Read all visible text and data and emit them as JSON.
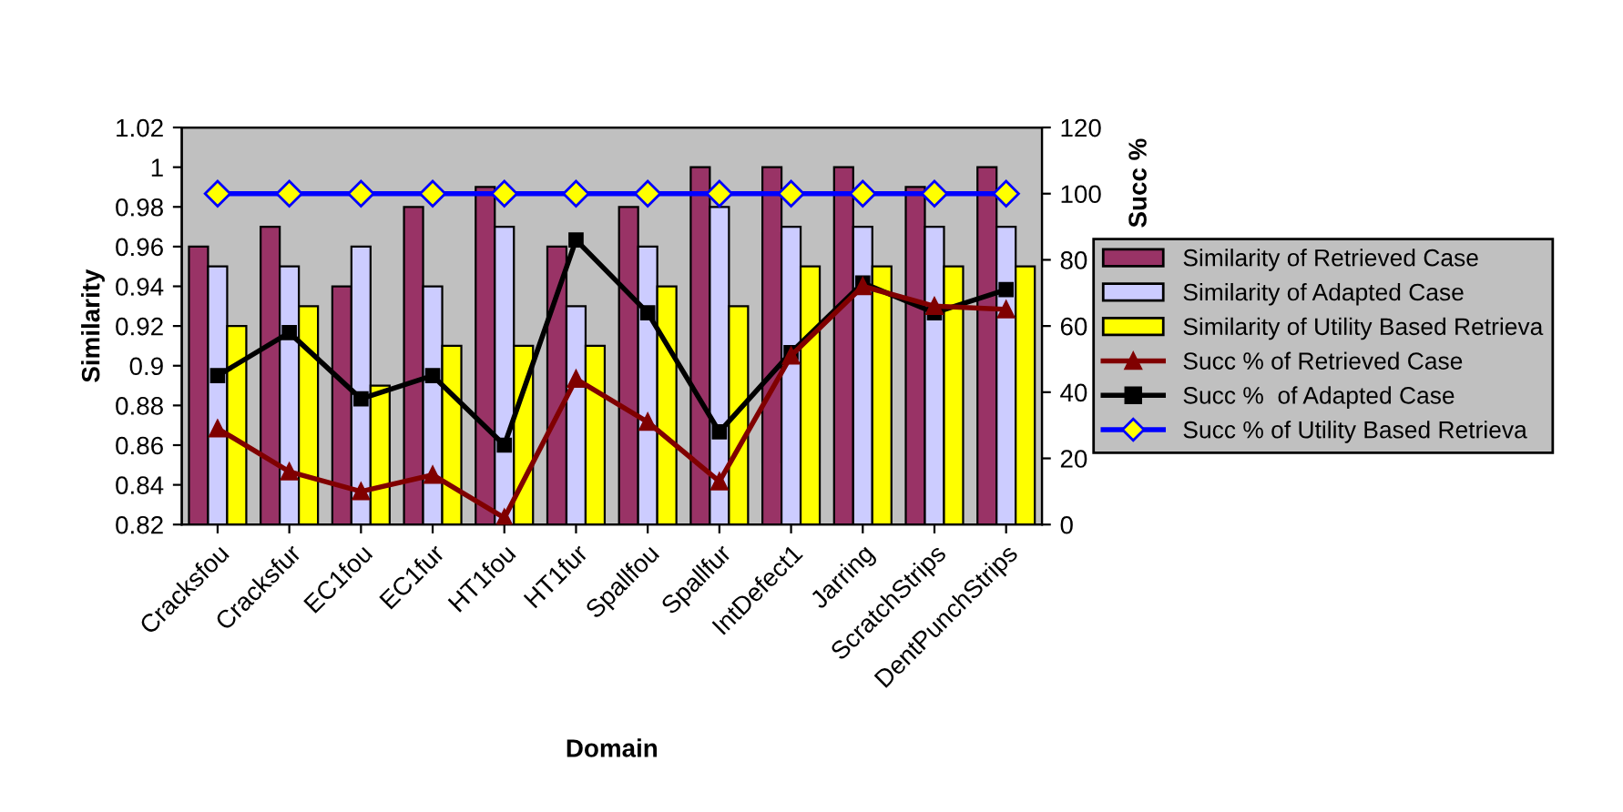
{
  "chart_data": {
    "type": "bar",
    "xlabel": "Domain",
    "ylabel": "Similarity",
    "y2label": "Succ %",
    "categories": [
      "Cracksfou",
      "Cracksfur",
      "EC1fou",
      "EC1fur",
      "HT1fou",
      "HT1fur",
      "Spallfou",
      "Spallfur",
      "IntDefect1",
      "Jarring",
      "ScratchStrips",
      "DentPunchStrips"
    ],
    "series": [
      {
        "name": "Similarity of Retrieved Case",
        "color": "#993366",
        "values": [
          0.96,
          0.97,
          0.94,
          0.98,
          0.99,
          0.96,
          0.98,
          1.0,
          1.0,
          1.0,
          0.99,
          1.0
        ]
      },
      {
        "name": "Similarity of Adapted Case",
        "color": "#ccccff",
        "values": [
          0.95,
          0.95,
          0.96,
          0.94,
          0.97,
          0.93,
          0.96,
          0.98,
          0.97,
          0.97,
          0.97,
          0.97
        ]
      },
      {
        "name": "Similarity of Utility Based Retrieva",
        "color": "#ffff00",
        "values": [
          0.92,
          0.93,
          0.89,
          0.91,
          0.91,
          0.91,
          0.94,
          0.93,
          0.95,
          0.95,
          0.95,
          0.95
        ]
      },
      {
        "name": "Succ % of Retrieved Case",
        "type": "line",
        "axis": "y2",
        "marker": "triangle",
        "color": "#800000",
        "values": [
          29,
          16,
          10,
          15,
          2,
          44,
          31,
          13,
          51,
          72,
          66,
          65
        ]
      },
      {
        "name": "Succ %  of Adapted Case",
        "type": "line",
        "axis": "y2",
        "marker": "square",
        "color": "#000000",
        "values": [
          45,
          58,
          38,
          45,
          24,
          86,
          64,
          28,
          52,
          73,
          64,
          71
        ]
      },
      {
        "name": "Succ % of Utility Based Retrieva",
        "type": "line",
        "axis": "y2",
        "marker": "diamond",
        "color": "#0000ff",
        "values": [
          100,
          100,
          100,
          100,
          100,
          100,
          100,
          100,
          100,
          100,
          100,
          100
        ]
      }
    ],
    "ylim": [
      0.82,
      1.02
    ],
    "yticks": [
      0.82,
      0.84,
      0.86,
      0.88,
      0.9,
      0.92,
      0.94,
      0.96,
      0.98,
      1,
      1.02
    ],
    "y2lim": [
      0,
      120
    ],
    "y2ticks": [
      0,
      20,
      40,
      60,
      80,
      100,
      120
    ],
    "grid": false,
    "legend": "right"
  }
}
